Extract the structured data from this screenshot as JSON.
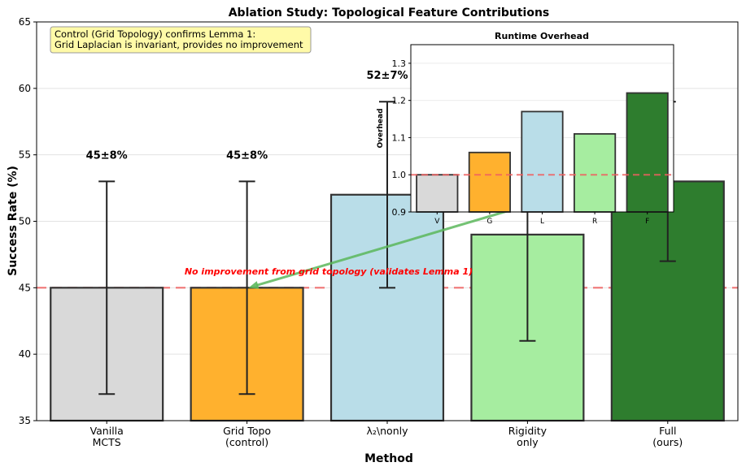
{
  "chart_data": [
    {
      "type": "bar",
      "title": "Ablation Study: Topological Feature Contributions",
      "xlabel": "Method",
      "ylabel": "Success Rate (%)",
      "ylim": [
        35,
        65
      ],
      "yticks": [
        35,
        40,
        45,
        50,
        55,
        60,
        65
      ],
      "categories": [
        [
          "Vanilla",
          "MCTS"
        ],
        [
          "Grid Topo",
          "(control)"
        ],
        [
          "λ₂\\nonly"
        ],
        [
          "Rigidity",
          "only"
        ],
        [
          "Full",
          "(ours)"
        ]
      ],
      "values": [
        45,
        45,
        52,
        49,
        53
      ],
      "errors": [
        8,
        8,
        7,
        8,
        6
      ],
      "value_labels": [
        "45±8%",
        "45±8%",
        "52±7%",
        "",
        ""
      ],
      "colors": [
        "#d9d9d9",
        "#ffb12e",
        "#b9dde8",
        "#a6eda0",
        "#2e7d2e"
      ],
      "baseline": {
        "value": 45,
        "color": "#f06060"
      },
      "grid": "y",
      "annotation": {
        "text": "No improvement from grid topology (validates Lemma 1)",
        "color": "#ff0000",
        "points_to": {
          "category": "Grid Topo (control)",
          "value": 45
        },
        "arrow_color": "#5cb85c"
      },
      "note_box": {
        "lines": [
          "Control (Grid Topology) confirms Lemma 1:",
          "Grid Laplacian is invariant, provides no improvement"
        ],
        "background": "#fffaa8"
      }
    },
    {
      "type": "bar",
      "title": "Runtime Overhead",
      "xlabel": "",
      "ylabel": "Overhead",
      "ylim": [
        0.9,
        1.35
      ],
      "yticks": [
        0.9,
        1.0,
        1.1,
        1.2,
        1.3
      ],
      "categories": [
        "V",
        "G",
        "L",
        "R",
        "F"
      ],
      "values": [
        1.0,
        1.06,
        1.17,
        1.11,
        1.22
      ],
      "colors": [
        "#d9d9d9",
        "#ffb12e",
        "#b9dde8",
        "#a6eda0",
        "#2e7d2e"
      ],
      "baseline": {
        "value": 1.0,
        "color": "#f06060"
      }
    }
  ]
}
